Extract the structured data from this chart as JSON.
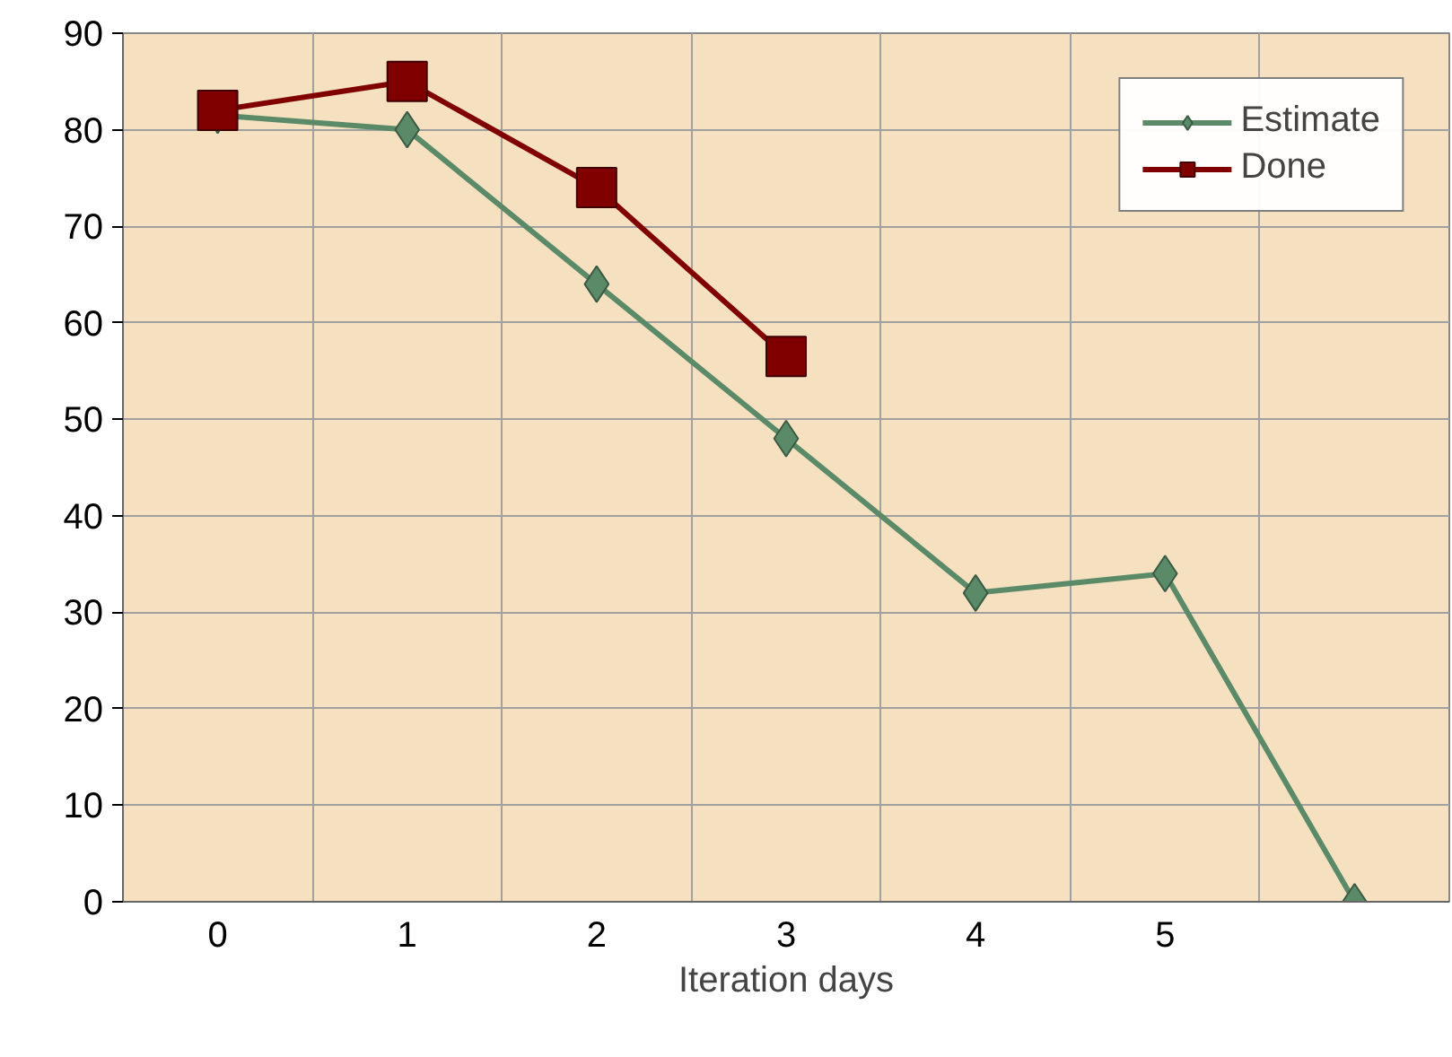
{
  "chart_data": {
    "type": "line",
    "xlabel": "Iteration days",
    "categories": [
      "0",
      "1",
      "2",
      "3",
      "4",
      "5",
      null
    ],
    "series": [
      {
        "name": "Estimate",
        "color": "#5b8a68",
        "marker": "diamond",
        "values": [
          81.5,
          80,
          64,
          48,
          32,
          34,
          0
        ]
      },
      {
        "name": "Done",
        "color": "#800000",
        "marker": "square",
        "values": [
          82,
          85,
          74,
          56.5,
          null,
          null,
          null
        ]
      }
    ],
    "ylim": [
      0,
      90
    ],
    "yticks": [
      0,
      10,
      20,
      30,
      40,
      50,
      60,
      70,
      80,
      90
    ],
    "grid": true,
    "legend": "top right",
    "line_style": "solid"
  }
}
